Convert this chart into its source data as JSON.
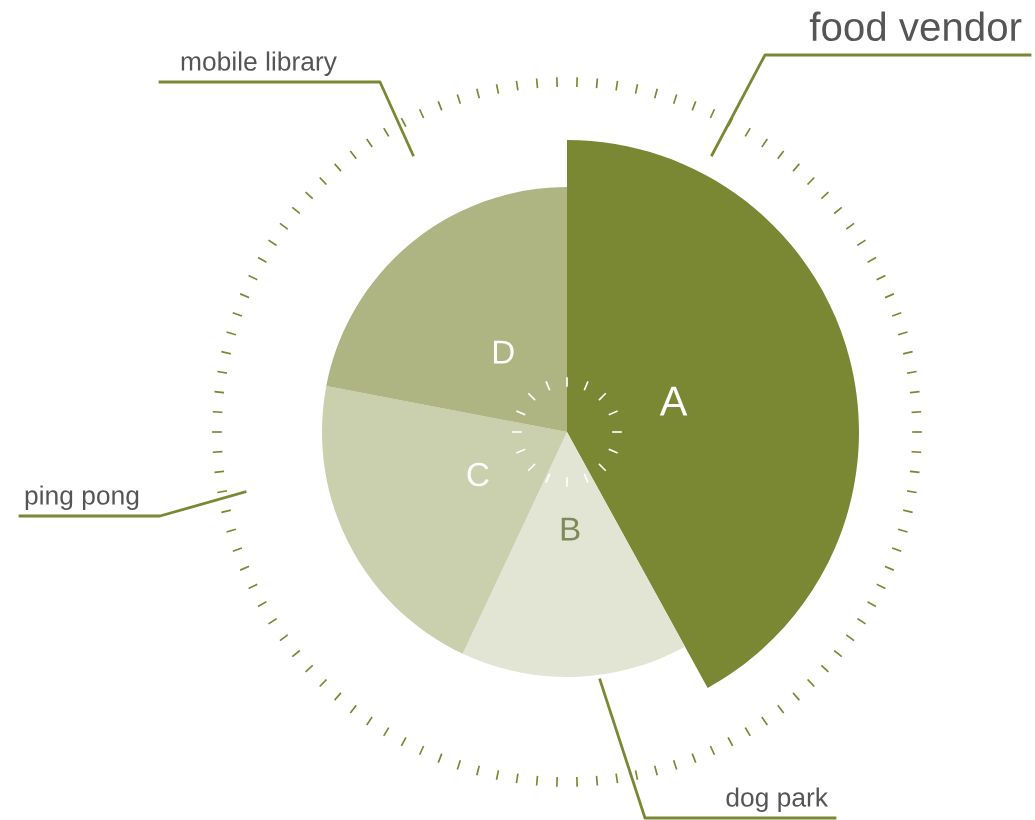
{
  "chart_data": {
    "type": "pie",
    "categories": [
      "food vendor",
      "dog park",
      "ping pong",
      "mobile library"
    ],
    "values": [
      42,
      15,
      21,
      22
    ],
    "colors": [
      "#7a8733",
      "#e2e5d4",
      "#cacfae",
      "#aeb583"
    ],
    "annotations": [
      {
        "text": "A",
        "x": "food vendor"
      },
      {
        "text": "B",
        "x": "dog park"
      },
      {
        "text": "C",
        "x": "ping pong"
      },
      {
        "text": "D",
        "x": "mobile library"
      }
    ]
  }
}
